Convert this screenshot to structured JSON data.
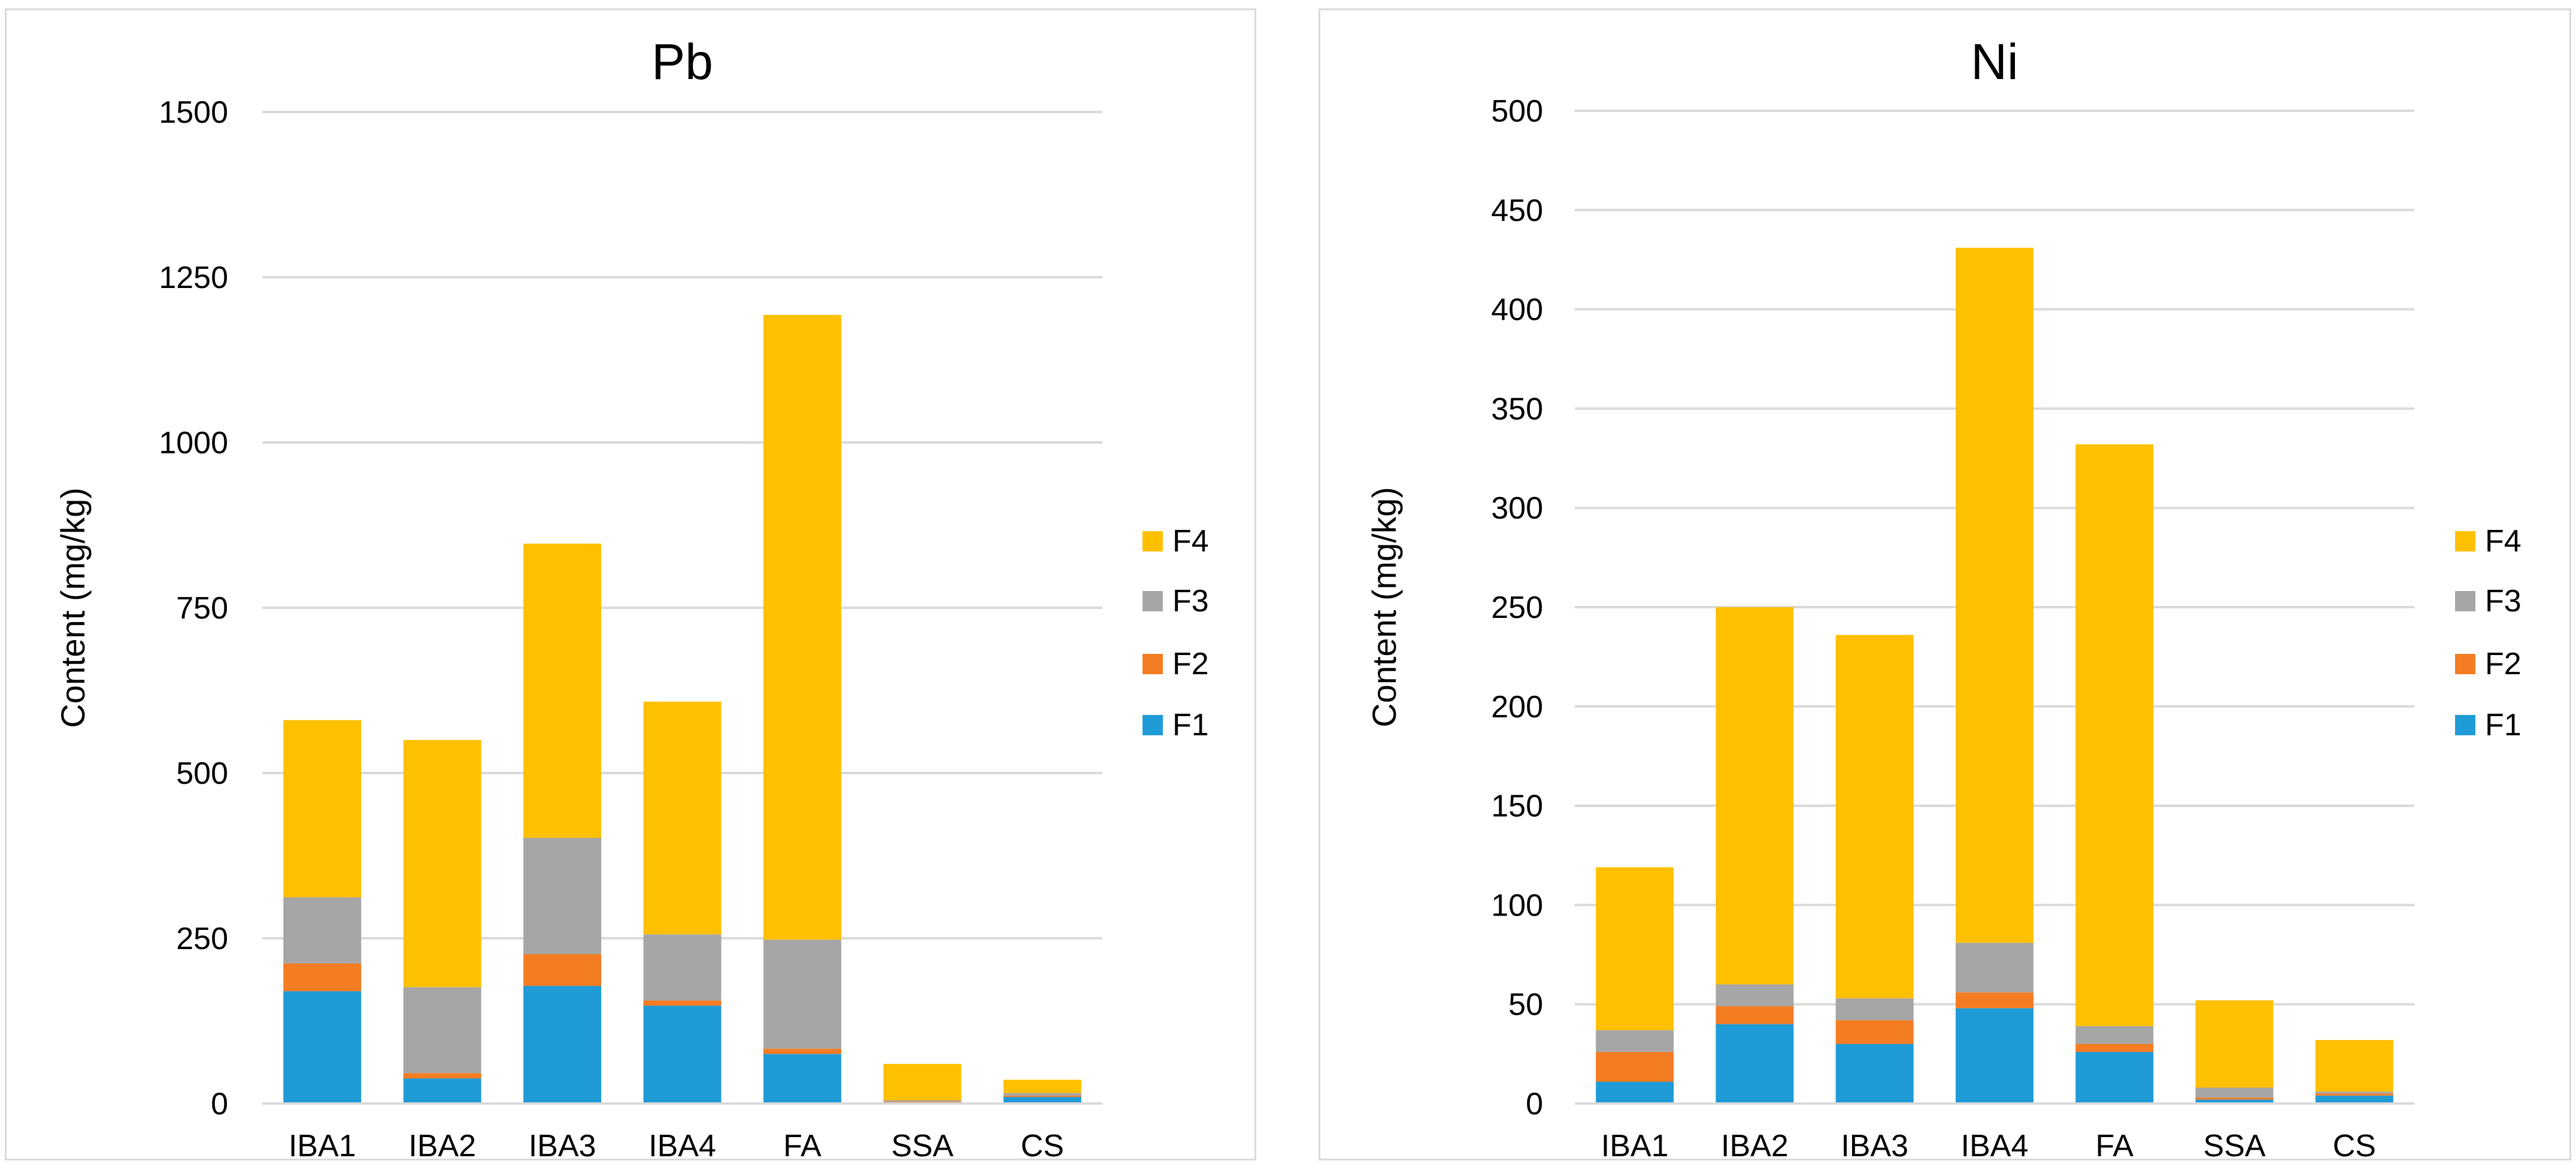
{
  "colors": {
    "F1": "#1f9bd7",
    "F2": "#f47c22",
    "F3": "#a6a6a6",
    "F4": "#ffc000",
    "grid": "#d9d9d9"
  },
  "chart_data": [
    {
      "type": "bar",
      "stacked": true,
      "title": "Pb",
      "xlabel": "",
      "ylabel": "Content (mg/kg)",
      "ylim": [
        0,
        1500
      ],
      "yticks": [
        0,
        250,
        500,
        750,
        1000,
        1250,
        1500
      ],
      "grid": true,
      "legend": "right",
      "categories": [
        "IBA1",
        "IBA2",
        "IBA3",
        "IBA4",
        "FA",
        "SSA",
        "CS"
      ],
      "series": [
        {
          "name": "F1",
          "values": [
            170,
            38,
            178,
            148,
            75,
            2,
            10
          ]
        },
        {
          "name": "F2",
          "values": [
            42,
            8,
            48,
            8,
            8,
            1,
            2
          ]
        },
        {
          "name": "F3",
          "values": [
            100,
            130,
            176,
            100,
            165,
            2,
            4
          ]
        },
        {
          "name": "F4",
          "values": [
            268,
            374,
            445,
            352,
            945,
            55,
            20
          ]
        }
      ]
    },
    {
      "type": "bar",
      "stacked": true,
      "title": "Ni",
      "xlabel": "",
      "ylabel": "Content (mg/kg)",
      "ylim": [
        0,
        500
      ],
      "yticks": [
        0,
        50,
        100,
        150,
        200,
        250,
        300,
        350,
        400,
        450,
        500
      ],
      "grid": true,
      "legend": "right",
      "categories": [
        "IBA1",
        "IBA2",
        "IBA3",
        "IBA4",
        "FA",
        "SSA",
        "CS"
      ],
      "series": [
        {
          "name": "F1",
          "values": [
            11,
            40,
            30,
            48,
            26,
            2,
            4
          ]
        },
        {
          "name": "F2",
          "values": [
            15,
            9,
            12,
            8,
            4,
            1,
            1
          ]
        },
        {
          "name": "F3",
          "values": [
            11,
            11,
            11,
            25,
            9,
            5,
            1
          ]
        },
        {
          "name": "F4",
          "values": [
            82,
            190,
            183,
            350,
            293,
            44,
            26
          ]
        }
      ]
    }
  ]
}
